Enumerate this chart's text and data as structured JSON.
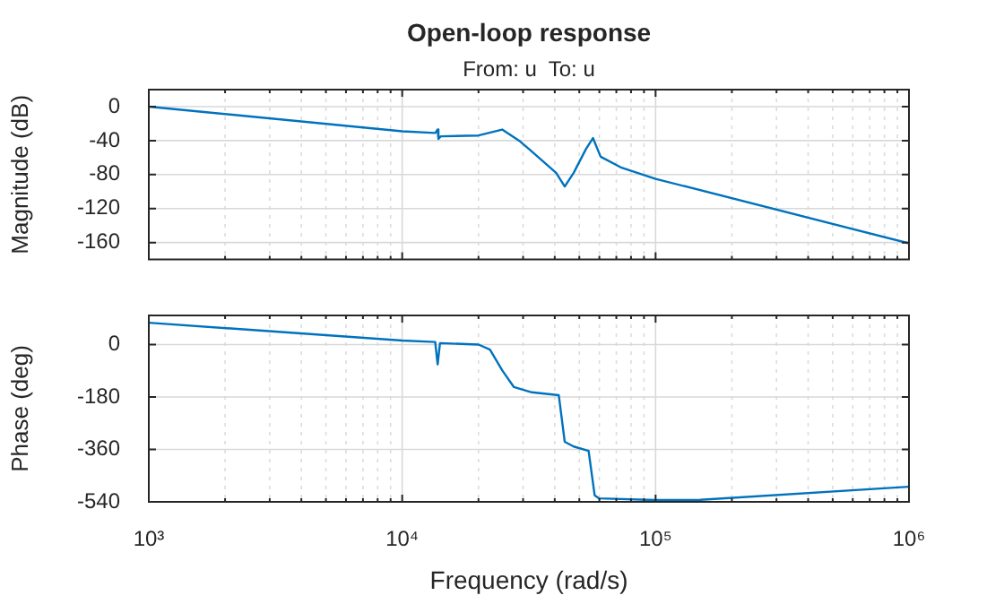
{
  "chart_data": [
    {
      "type": "line",
      "title": "Open-loop response",
      "subtitle": "From: u  To: u",
      "ylabel": "Magnitude (dB)",
      "log": "x",
      "grid": true,
      "legend": false,
      "tick_labels": "y",
      "marker": "none",
      "xlim": [
        1000,
        1000000
      ],
      "xticks": [
        1000,
        {
          "value": 2000,
          "label": null
        },
        {
          "value": 3000,
          "label": null
        },
        {
          "value": 4000,
          "label": null
        },
        {
          "value": 5000,
          "label": null
        },
        {
          "value": 6000,
          "label": null
        },
        {
          "value": 7000,
          "label": null
        },
        {
          "value": 8000,
          "label": null
        },
        {
          "value": 9000,
          "label": null
        },
        10000,
        {
          "value": 20000,
          "label": null
        },
        {
          "value": 30000,
          "label": null
        },
        {
          "value": 40000,
          "label": null
        },
        {
          "value": 50000,
          "label": null
        },
        {
          "value": 60000,
          "label": null
        },
        {
          "value": 70000,
          "label": null
        },
        {
          "value": 80000,
          "label": null
        },
        {
          "value": 90000,
          "label": null
        },
        100000,
        {
          "value": 200000,
          "label": null
        },
        {
          "value": 300000,
          "label": null
        },
        {
          "value": 400000,
          "label": null
        },
        {
          "value": 500000,
          "label": null
        },
        {
          "value": 600000,
          "label": null
        },
        {
          "value": 700000,
          "label": null
        },
        {
          "value": 800000,
          "label": null
        },
        {
          "value": 900000,
          "label": null
        },
        1000000
      ],
      "ylim": [
        -180,
        20
      ],
      "yticks": [
        -160,
        -120,
        -80,
        -40,
        0
      ],
      "x": [
        1000,
        10000,
        13500,
        13800,
        13900,
        14200,
        20000,
        24800,
        29200,
        32500,
        40500,
        43800,
        47500,
        53100,
        56600,
        60700,
        73500,
        100000,
        1000000
      ],
      "series": [
        {
          "color": "#0072bd",
          "values": [
            0,
            -29,
            -31,
            -27,
            -38,
            -35,
            -34,
            -27,
            -41,
            -53,
            -78,
            -94,
            -78,
            -50,
            -37,
            -59,
            -72,
            -85,
            -161
          ]
        }
      ]
    },
    {
      "type": "line",
      "xlabel": "Frequency (rad/s)",
      "ylabel": "Phase (deg)",
      "log": "x",
      "grid": true,
      "legend": false,
      "marker": "none",
      "xlim": [
        1000,
        1000000
      ],
      "xticks": [
        {
          "value": 1000,
          "label": "10³"
        },
        {
          "value": 2000,
          "label": null
        },
        {
          "value": 3000,
          "label": null
        },
        {
          "value": 4000,
          "label": null
        },
        {
          "value": 5000,
          "label": null
        },
        {
          "value": 6000,
          "label": null
        },
        {
          "value": 7000,
          "label": null
        },
        {
          "value": 8000,
          "label": null
        },
        {
          "value": 9000,
          "label": null
        },
        {
          "value": 10000,
          "label": "10⁴"
        },
        {
          "value": 20000,
          "label": null
        },
        {
          "value": 30000,
          "label": null
        },
        {
          "value": 40000,
          "label": null
        },
        {
          "value": 50000,
          "label": null
        },
        {
          "value": 60000,
          "label": null
        },
        {
          "value": 70000,
          "label": null
        },
        {
          "value": 80000,
          "label": null
        },
        {
          "value": 90000,
          "label": null
        },
        {
          "value": 100000,
          "label": "10⁵"
        },
        {
          "value": 200000,
          "label": null
        },
        {
          "value": 300000,
          "label": null
        },
        {
          "value": 400000,
          "label": null
        },
        {
          "value": 500000,
          "label": null
        },
        {
          "value": 600000,
          "label": null
        },
        {
          "value": 700000,
          "label": null
        },
        {
          "value": 800000,
          "label": null
        },
        {
          "value": 900000,
          "label": null
        },
        {
          "value": 1000000,
          "label": "10⁶"
        }
      ],
      "ylim": [
        -540,
        100
      ],
      "yticks": [
        -540,
        -360,
        -180,
        0
      ],
      "x": [
        1000,
        10000,
        13500,
        13800,
        14100,
        20000,
        22200,
        24800,
        27600,
        32500,
        41500,
        43800,
        47500,
        54400,
        57500,
        59700,
        100000,
        150000,
        1000000
      ],
      "series": [
        {
          "color": "#0072bd",
          "values": [
            75,
            14,
            9,
            -68,
            5,
            0,
            -17,
            -88,
            -146,
            -164,
            -174,
            -334,
            -350,
            -365,
            -518,
            -528,
            -534,
            -533,
            -488
          ]
        }
      ]
    }
  ]
}
